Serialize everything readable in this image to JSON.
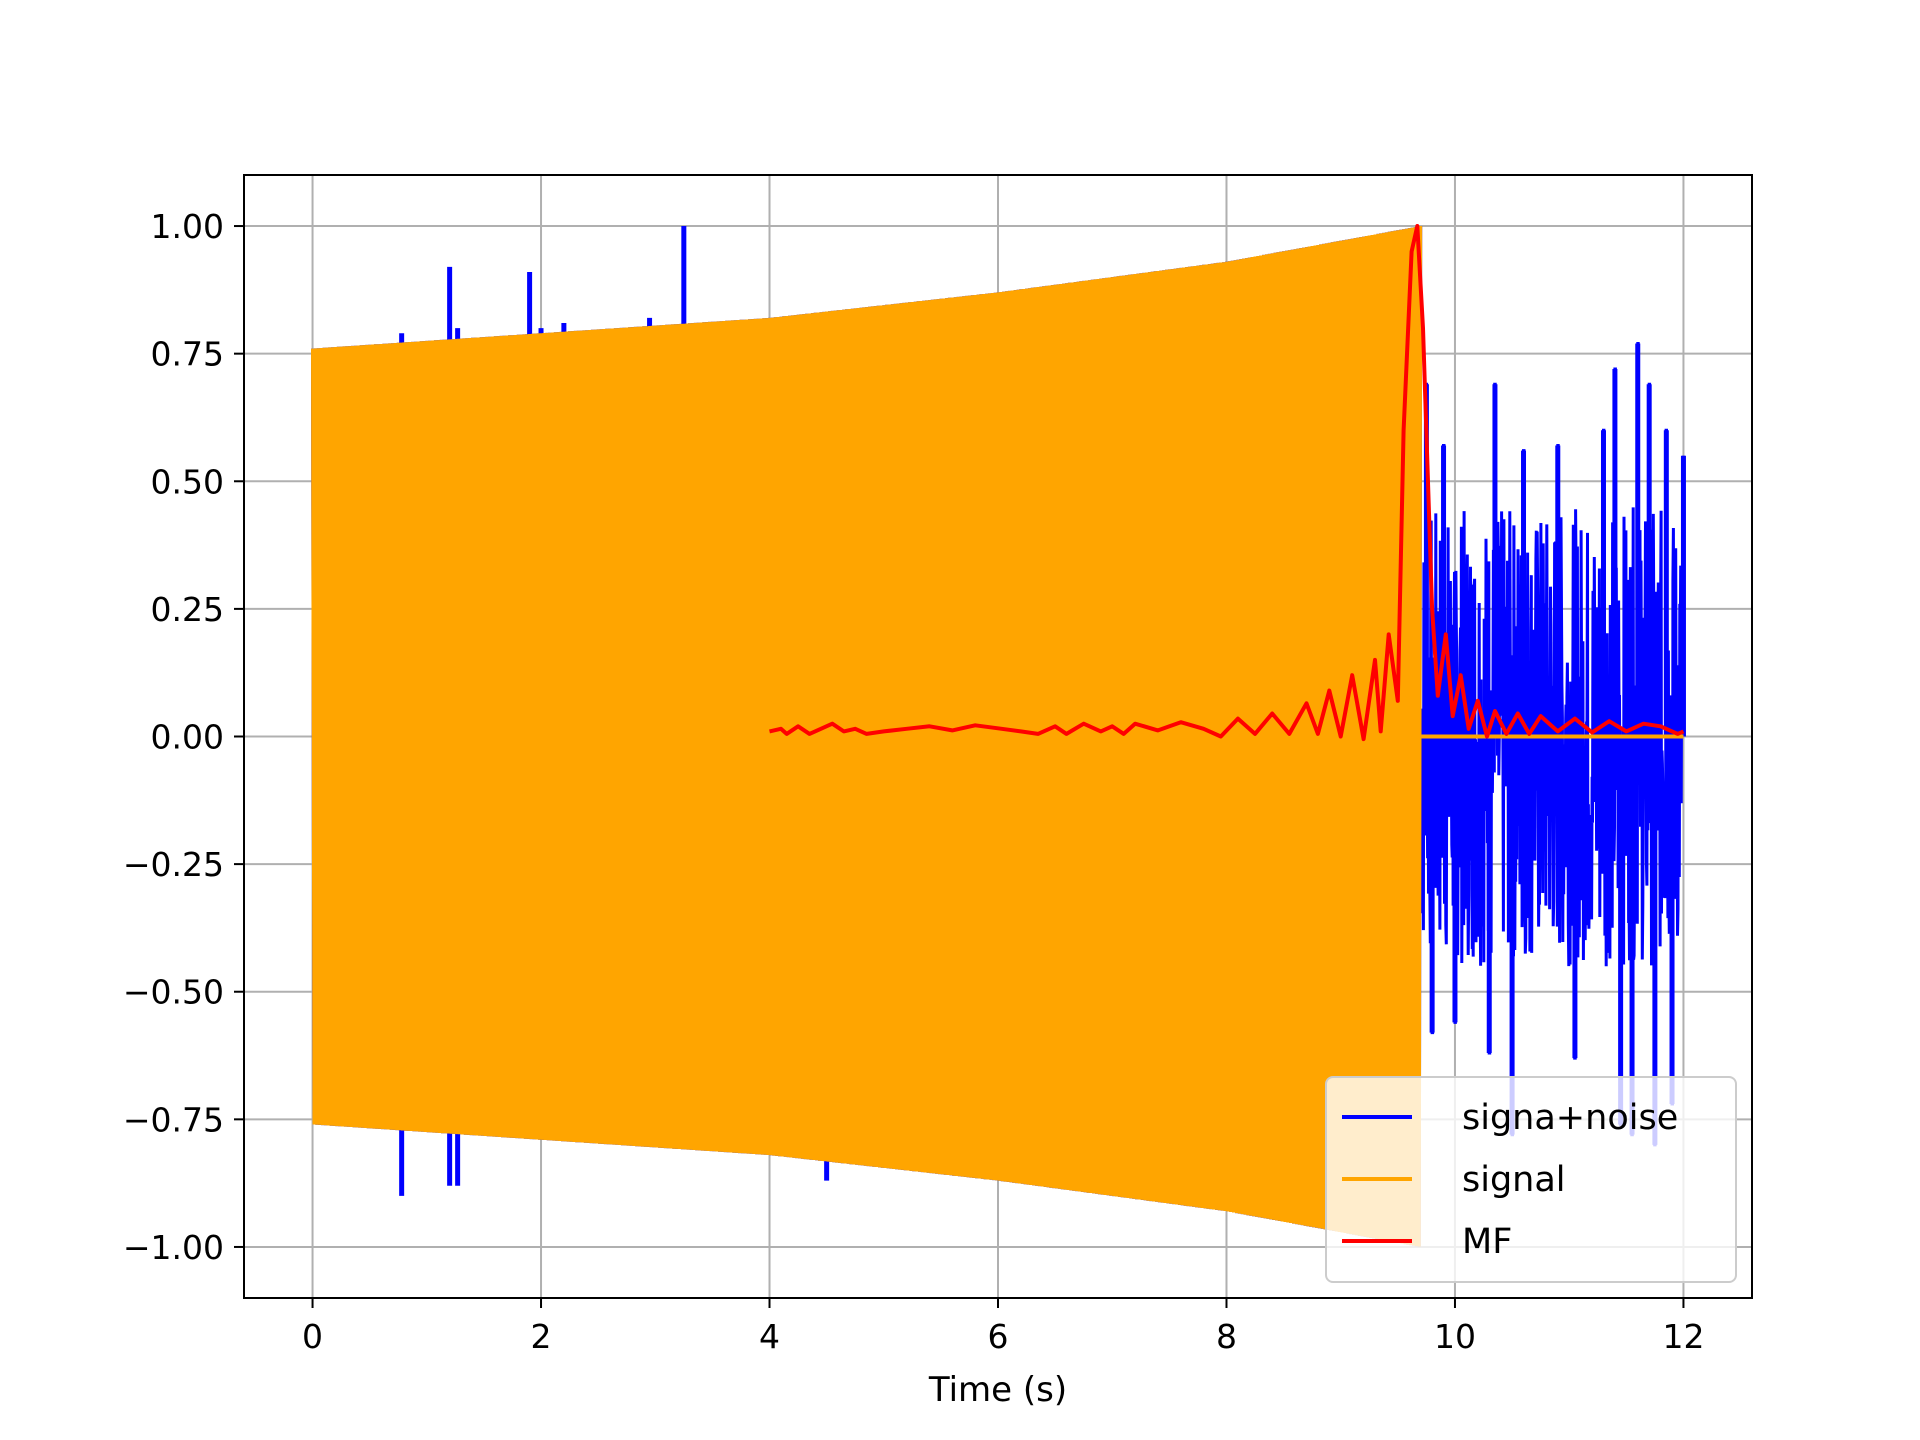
{
  "chart_data": {
    "type": "line",
    "title": "",
    "xlabel": "Time (s)",
    "ylabel": "",
    "xlim": [
      -0.6,
      12.6
    ],
    "ylim": [
      -1.1,
      1.1
    ],
    "grid": true,
    "x_ticks": [
      0,
      2,
      4,
      6,
      8,
      10,
      12
    ],
    "x_tick_labels": [
      "0",
      "2",
      "4",
      "6",
      "8",
      "10",
      "12"
    ],
    "y_ticks": [
      1.0,
      0.75,
      0.5,
      0.25,
      0.0,
      -0.25,
      -0.5,
      -0.75,
      -1.0
    ],
    "y_tick_labels": [
      "1.00",
      "0.75",
      "0.50",
      "0.25",
      "0.00",
      "−0.25",
      "−0.50",
      "−0.75",
      "−1.00"
    ],
    "legend_position": "lower-right",
    "series": [
      {
        "name": "signa+noise",
        "color": "#0000ff",
        "kind": "oscillating-band",
        "upper": [
          [
            0,
            0.76
          ],
          [
            4,
            0.82
          ],
          [
            6,
            0.87
          ],
          [
            8,
            0.93
          ],
          [
            9.7,
            1.0
          ]
        ],
        "lower": [
          [
            0,
            -0.76
          ],
          [
            4,
            -0.82
          ],
          [
            6,
            -0.87
          ],
          [
            8,
            -0.93
          ],
          [
            9.7,
            -1.0
          ]
        ],
        "spikes": [
          [
            0.78,
            0.79
          ],
          [
            0.78,
            -0.9
          ],
          [
            1.2,
            0.92
          ],
          [
            1.2,
            -0.88
          ],
          [
            1.27,
            0.8
          ],
          [
            1.27,
            -0.88
          ],
          [
            1.9,
            0.91
          ],
          [
            2.0,
            0.8
          ],
          [
            2.2,
            0.81
          ],
          [
            2.95,
            0.82
          ],
          [
            3.25,
            1.0
          ],
          [
            4.5,
            -0.87
          ]
        ],
        "noise_segment": {
          "x_start": 9.7,
          "x_end": 12.0
        },
        "noise_peaks": [
          [
            9.75,
            0.69
          ],
          [
            9.8,
            -0.58
          ],
          [
            9.9,
            0.57
          ],
          [
            10.0,
            -0.56
          ],
          [
            10.35,
            0.69
          ],
          [
            10.3,
            -0.62
          ],
          [
            10.5,
            -0.78
          ],
          [
            10.6,
            0.56
          ],
          [
            10.9,
            0.57
          ],
          [
            11.05,
            -0.63
          ],
          [
            11.3,
            0.6
          ],
          [
            11.4,
            0.72
          ],
          [
            11.45,
            -0.76
          ],
          [
            11.55,
            -0.78
          ],
          [
            11.6,
            0.77
          ],
          [
            11.7,
            0.69
          ],
          [
            11.75,
            -0.8
          ],
          [
            11.85,
            0.6
          ],
          [
            11.9,
            -0.72
          ],
          [
            12.0,
            0.55
          ]
        ]
      },
      {
        "name": "signal",
        "color": "#ffa500",
        "kind": "oscillating-band",
        "upper": [
          [
            0,
            0.76
          ],
          [
            2,
            0.79
          ],
          [
            4,
            0.82
          ],
          [
            6,
            0.87
          ],
          [
            8,
            0.93
          ],
          [
            9.7,
            1.0
          ]
        ],
        "lower": [
          [
            0,
            -0.76
          ],
          [
            2,
            -0.79
          ],
          [
            4,
            -0.82
          ],
          [
            6,
            -0.87
          ],
          [
            8,
            -0.93
          ],
          [
            9.7,
            -1.0
          ]
        ],
        "zero_segment": {
          "x_start": 9.7,
          "x_end": 12.0,
          "value": 0.0
        }
      },
      {
        "name": "MF",
        "color": "#ff0000",
        "kind": "line",
        "points": [
          [
            4.0,
            0.01
          ],
          [
            4.1,
            0.015
          ],
          [
            4.15,
            0.005
          ],
          [
            4.25,
            0.02
          ],
          [
            4.35,
            0.005
          ],
          [
            4.45,
            0.015
          ],
          [
            4.55,
            0.025
          ],
          [
            4.65,
            0.01
          ],
          [
            4.75,
            0.015
          ],
          [
            4.85,
            0.005
          ],
          [
            5.0,
            0.01
          ],
          [
            5.2,
            0.015
          ],
          [
            5.4,
            0.02
          ],
          [
            5.6,
            0.012
          ],
          [
            5.8,
            0.022
          ],
          [
            6.0,
            0.016
          ],
          [
            6.2,
            0.01
          ],
          [
            6.35,
            0.005
          ],
          [
            6.5,
            0.02
          ],
          [
            6.6,
            0.005
          ],
          [
            6.75,
            0.025
          ],
          [
            6.9,
            0.01
          ],
          [
            7.0,
            0.02
          ],
          [
            7.1,
            0.005
          ],
          [
            7.2,
            0.025
          ],
          [
            7.4,
            0.012
          ],
          [
            7.6,
            0.028
          ],
          [
            7.8,
            0.015
          ],
          [
            7.95,
            0.0
          ],
          [
            8.1,
            0.035
          ],
          [
            8.25,
            0.005
          ],
          [
            8.4,
            0.045
          ],
          [
            8.55,
            0.005
          ],
          [
            8.7,
            0.065
          ],
          [
            8.8,
            0.005
          ],
          [
            8.9,
            0.09
          ],
          [
            9.0,
            0.0
          ],
          [
            9.1,
            0.12
          ],
          [
            9.2,
            -0.005
          ],
          [
            9.3,
            0.15
          ],
          [
            9.35,
            0.01
          ],
          [
            9.42,
            0.2
          ],
          [
            9.5,
            0.07
          ],
          [
            9.55,
            0.6
          ],
          [
            9.62,
            0.95
          ],
          [
            9.67,
            1.0
          ],
          [
            9.72,
            0.8
          ],
          [
            9.8,
            0.25
          ],
          [
            9.85,
            0.08
          ],
          [
            9.92,
            0.2
          ],
          [
            9.98,
            0.04
          ],
          [
            10.05,
            0.12
          ],
          [
            10.12,
            0.015
          ],
          [
            10.2,
            0.07
          ],
          [
            10.28,
            0.0
          ],
          [
            10.35,
            0.05
          ],
          [
            10.45,
            0.005
          ],
          [
            10.55,
            0.045
          ],
          [
            10.65,
            0.005
          ],
          [
            10.75,
            0.04
          ],
          [
            10.9,
            0.01
          ],
          [
            11.05,
            0.035
          ],
          [
            11.2,
            0.008
          ],
          [
            11.35,
            0.03
          ],
          [
            11.5,
            0.01
          ],
          [
            11.65,
            0.025
          ],
          [
            11.8,
            0.02
          ],
          [
            11.95,
            0.005
          ],
          [
            12.0,
            0.01
          ]
        ]
      }
    ]
  }
}
